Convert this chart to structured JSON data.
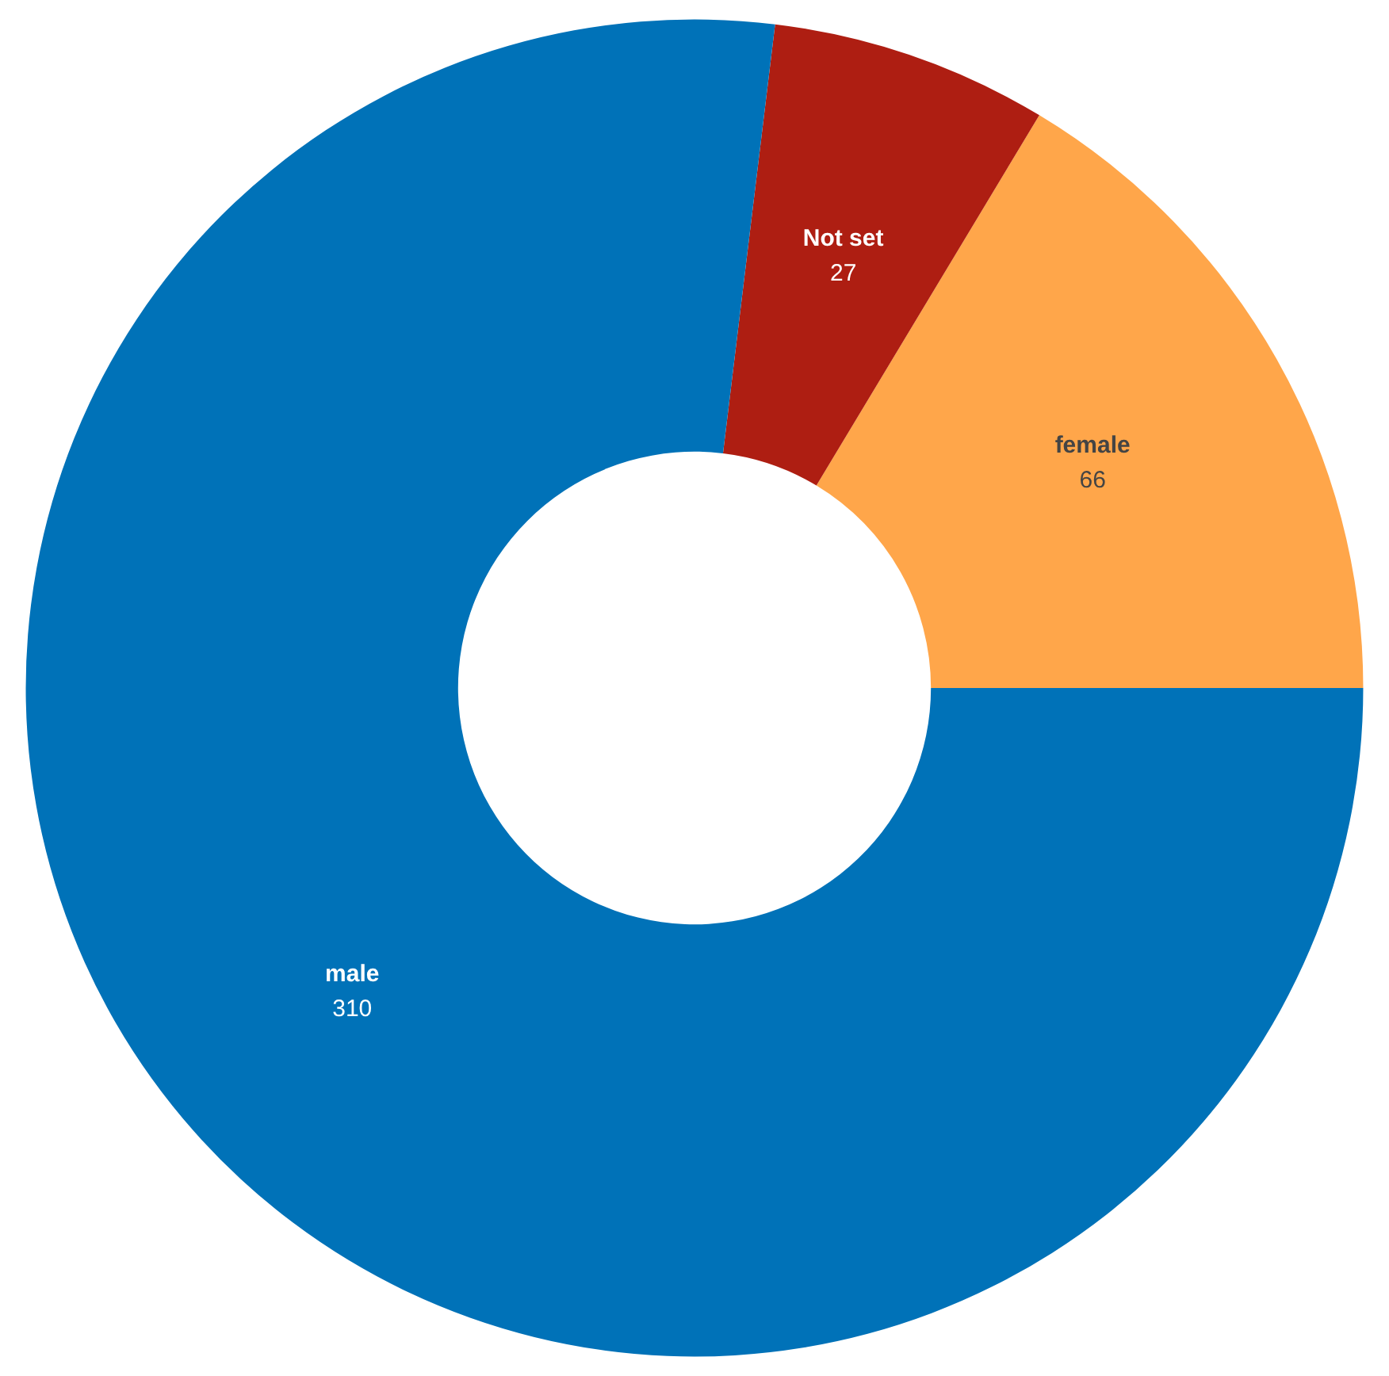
{
  "chart_data": {
    "type": "donut",
    "categories": [
      "female",
      "Not set",
      "male"
    ],
    "values": [
      66,
      27,
      310
    ],
    "colors": [
      "#ffa64a",
      "#ae1e12",
      "#0072b8"
    ],
    "data_labels": true,
    "legend": false
  }
}
